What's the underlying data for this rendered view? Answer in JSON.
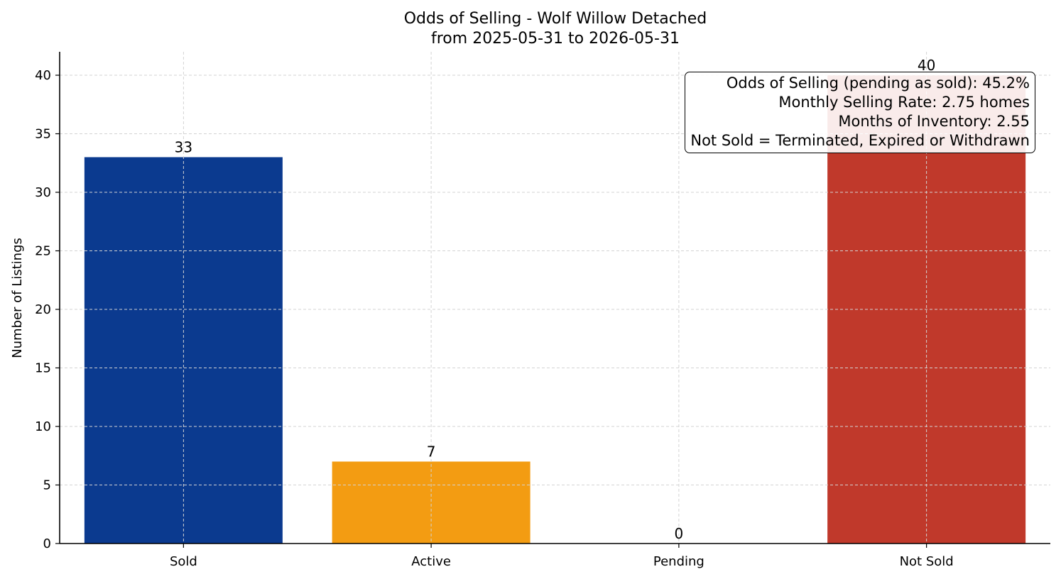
{
  "chart_data": {
    "type": "bar",
    "title": "Odds of Selling - Wolf Willow Detached",
    "subtitle": "from 2025-05-31 to 2026-05-31",
    "xlabel": "",
    "ylabel": "Number of Listings",
    "categories": [
      "Sold",
      "Active",
      "Pending",
      "Not Sold"
    ],
    "values": [
      33,
      7,
      0,
      40
    ],
    "colors": [
      "#0b3a8f",
      "#f39c12",
      "#808080",
      "#c0392b"
    ],
    "ylim": [
      0,
      42
    ],
    "yticks": [
      0,
      5,
      10,
      15,
      20,
      25,
      30,
      35,
      40
    ],
    "grid": true,
    "annotation": {
      "lines": [
        "Odds of Selling (pending as sold): 45.2%",
        "Monthly Selling Rate: 2.75 homes",
        "Months of Inventory: 2.55",
        "Not Sold = Terminated, Expired or Withdrawn"
      ],
      "placement": "top-right"
    }
  }
}
